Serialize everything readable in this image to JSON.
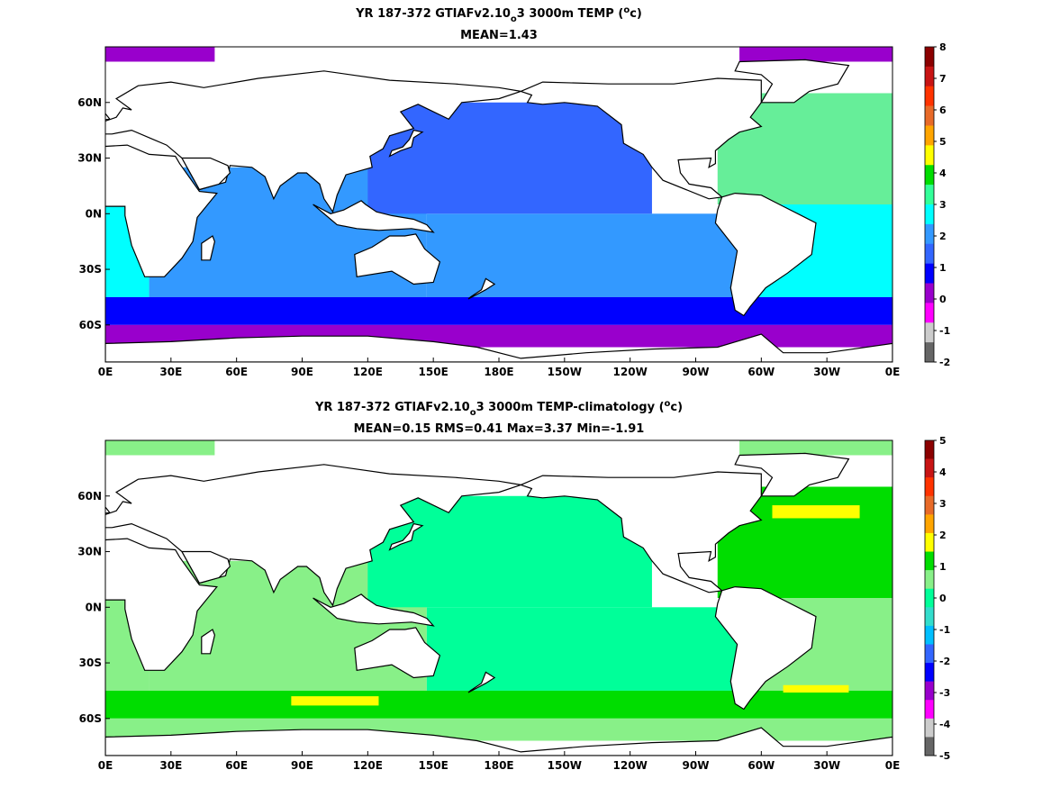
{
  "chart_data": [
    {
      "type": "heatmap",
      "title_line1": {
        "pre": "YR 187-372 GTIAFv2.10",
        "sub": "o",
        "post": "3 3000m TEMP (",
        "sup": "o",
        "end": "c)"
      },
      "title_line2": "MEAN=1.43",
      "x_ticks": [
        "0E",
        "30E",
        "60E",
        "90E",
        "120E",
        "150E",
        "180E",
        "150W",
        "120W",
        "90W",
        "60W",
        "30W",
        "0E"
      ],
      "y_ticks": [
        "60N",
        "30N",
        "0N",
        "30S",
        "60S"
      ],
      "y_tick_values": [
        60,
        30,
        0,
        -30,
        -60
      ],
      "lat_range": [
        -80,
        90
      ],
      "lon_range": [
        0,
        360
      ],
      "colorbar": {
        "labels": [
          "8",
          "7",
          "6",
          "5",
          "4",
          "3",
          "2",
          "1",
          "0",
          "-1",
          "-2"
        ],
        "colors": [
          "#8b0000",
          "#c81414",
          "#ff3300",
          "#e86a28",
          "#ffa500",
          "#ffff00",
          "#00dd00",
          "#33ff99",
          "#00ffff",
          "#3399ff",
          "#3366ff",
          "#0000ff",
          "#9900cc",
          "#ff00ff",
          "#cccccc",
          "#666666"
        ]
      },
      "fields": {
        "land": "#ffffff",
        "atlantic_north": "#66ee99",
        "atlantic_south": "#00ffff",
        "indian": "#3399ff",
        "pacific_north": "#3366ff",
        "pacific_south": "#3399ff",
        "southern_ocean": "#0000ff",
        "antarctic_margin": "#9900cc"
      }
    },
    {
      "type": "heatmap",
      "title_line1": {
        "pre": "YR 187-372 GTIAFv2.10",
        "sub": "o",
        "post": "3 3000m TEMP-climatology (",
        "sup": "o",
        "end": "c)"
      },
      "title_line2": "MEAN=0.15   RMS=0.41   Max=3.37   Min=-1.91",
      "x_ticks": [
        "0E",
        "30E",
        "60E",
        "90E",
        "120E",
        "150E",
        "180E",
        "150W",
        "120W",
        "90W",
        "60W",
        "30W",
        "0E"
      ],
      "y_ticks": [
        "60N",
        "30N",
        "0N",
        "30S",
        "60S"
      ],
      "y_tick_values": [
        60,
        30,
        0,
        -30,
        -60
      ],
      "lat_range": [
        -80,
        90
      ],
      "lon_range": [
        0,
        360
      ],
      "colorbar": {
        "labels": [
          "5",
          "4",
          "3",
          "2",
          "1",
          "0",
          "-1",
          "-2",
          "-3",
          "-4",
          "-5"
        ],
        "colors": [
          "#8b0000",
          "#c81414",
          "#ff3300",
          "#e86a28",
          "#ffa500",
          "#ffff00",
          "#00dd00",
          "#88f088",
          "#00ff99",
          "#33ddcc",
          "#00bfff",
          "#3366ff",
          "#0000ff",
          "#9900cc",
          "#ff00ff",
          "#cccccc",
          "#666666"
        ]
      },
      "fields": {
        "land": "#ffffff",
        "atlantic_north": "#00dd00",
        "atlantic_south": "#88f088",
        "indian": "#88f088",
        "pacific_north": "#00ff99",
        "pacific_south": "#00ff99",
        "southern_ocean": "#00dd00",
        "antarctic_margin": "#88f088",
        "highlight": "#ffff00"
      }
    }
  ]
}
